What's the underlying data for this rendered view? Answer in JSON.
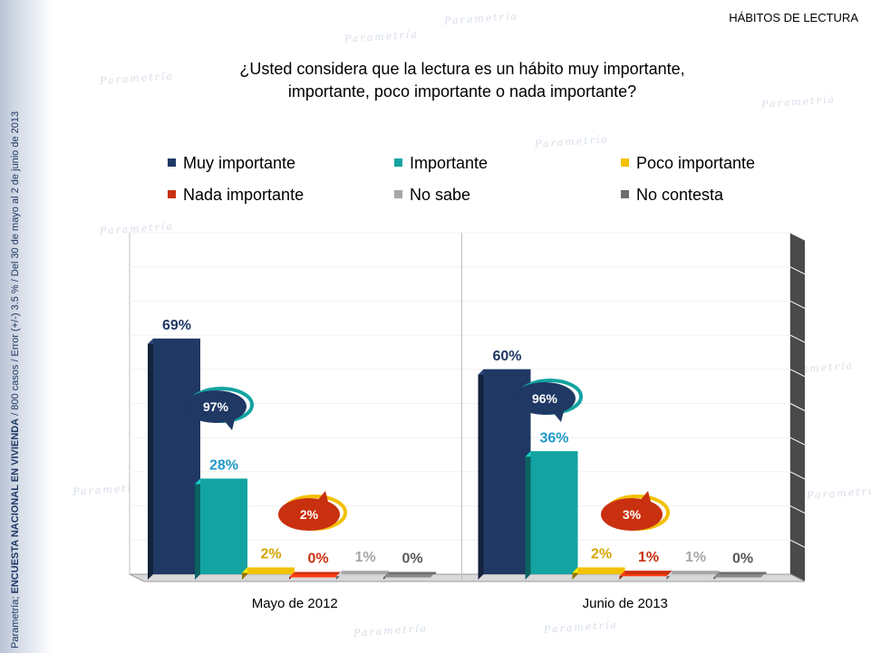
{
  "header": {
    "section_title": "HÁBITOS DE LECTURA"
  },
  "sidebar": {
    "source_prefix": "Parametría; ",
    "source_bold": "ENCUESTA NACIONAL EN VIVIENDA",
    "source_suffix": " / 800 casos / Error (+/-) 3.5 % / Del 30 de mayo al 2  de junio de 2013"
  },
  "watermark_text": "Parametría",
  "question": {
    "line1": "¿Usted considera que la lectura es un hábito muy importante,",
    "line2": "importante, poco importante o nada importante?"
  },
  "legend": [
    {
      "label": "Muy importante",
      "color": "#1f3864"
    },
    {
      "label": "Importante",
      "color": "#13a3a2"
    },
    {
      "label": "Poco importante",
      "color": "#f2c100"
    },
    {
      "label": "Nada importante",
      "color": "#c9300f"
    },
    {
      "label": "No sabe",
      "color": "#a6a6a6"
    },
    {
      "label": "No contesta",
      "color": "#6d6d6d"
    }
  ],
  "chart_data": {
    "type": "bar",
    "categories": [
      "Mayo de 2012",
      "Junio de 2013"
    ],
    "series": [
      {
        "name": "Muy importante",
        "values": [
          69,
          60
        ],
        "labels": [
          "69%",
          "60%"
        ]
      },
      {
        "name": "Importante",
        "values": [
          28,
          36
        ],
        "labels": [
          "28%",
          "36%"
        ]
      },
      {
        "name": "Poco importante",
        "values": [
          2,
          2
        ],
        "labels": [
          "2%",
          "2%"
        ]
      },
      {
        "name": "Nada importante",
        "values": [
          0,
          1
        ],
        "labels": [
          "0%",
          "1%"
        ]
      },
      {
        "name": "No sabe",
        "values": [
          1,
          1
        ],
        "labels": [
          "1%",
          "1%"
        ]
      },
      {
        "name": "No contesta",
        "values": [
          0,
          0
        ],
        "labels": [
          "0%",
          "0%"
        ]
      }
    ],
    "label_colors": [
      "#1f3864",
      "#1f9ac9",
      "#d4a400",
      "#c9300f",
      "#a6a6a6",
      "#595959"
    ],
    "ylim": [
      0,
      100
    ],
    "grid": true,
    "summaries": [
      {
        "category": "Mayo de 2012",
        "important_total": "97%",
        "unimportant_total": "2%"
      },
      {
        "category": "Junio de 2013",
        "important_total": "96%",
        "unimportant_total": "3%"
      }
    ]
  }
}
